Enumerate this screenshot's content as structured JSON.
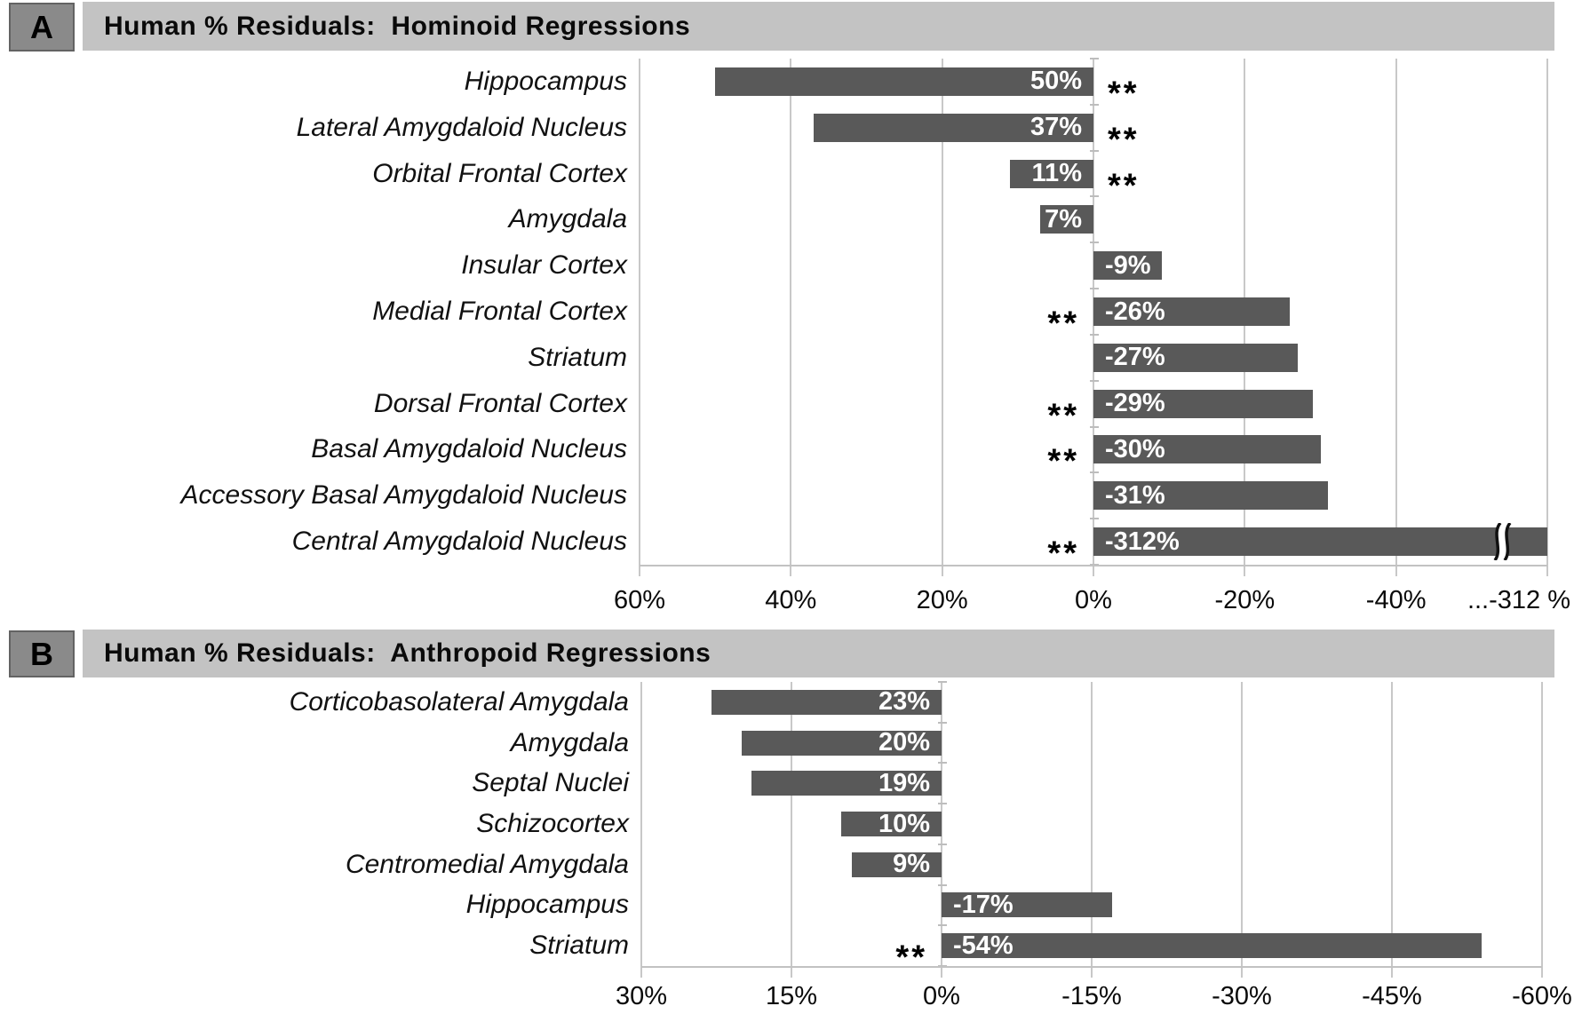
{
  "figure": {
    "description": "Two-panel horizontal bar chart of human percent residuals by brain structure"
  },
  "colors": {
    "bar": "#595959",
    "header_bg": "#c3c3c3",
    "panel_box_bg": "#8a8a8a",
    "panel_box_border": "#636363",
    "gridline": "#c8c8c8",
    "baseline": "#c2c2c2",
    "bar_value_text": "#ffffff",
    "text": "#000000"
  },
  "chart_data": [
    {
      "type": "bar",
      "orientation": "horizontal",
      "panel_label": "A",
      "title": "Human % Residuals:  Hominoid Regressions",
      "categories": [
        "Hippocampus",
        "Lateral Amygdaloid Nucleus",
        "Orbital Frontal Cortex",
        "Amygdala",
        "Insular Cortex",
        "Medial Frontal Cortex",
        "Striatum",
        "Dorsal Frontal Cortex",
        "Basal Amygdaloid Nucleus",
        "Accessory Basal Amygdaloid Nucleus",
        "Central Amygdaloid Nucleus"
      ],
      "values": [
        50,
        37,
        11,
        7,
        -9,
        -26,
        -27,
        -29,
        -30,
        -31,
        -312
      ],
      "bar_labels": [
        "50%",
        "37%",
        "11%",
        "7%",
        "-9%",
        "-26%",
        "-27%",
        "-29%",
        "-30%",
        "-31%",
        "-312%"
      ],
      "significance": [
        "**",
        "**",
        "**",
        "",
        "",
        "**",
        "",
        "**",
        "**",
        "",
        "**"
      ],
      "x_ticks": [
        {
          "v": 60,
          "t": "60%"
        },
        {
          "v": 40,
          "t": "40%"
        },
        {
          "v": 20,
          "t": "20%"
        },
        {
          "v": 0,
          "t": "0%"
        },
        {
          "v": -20,
          "t": "-20%"
        },
        {
          "v": -40,
          "t": "-40%"
        }
      ],
      "x_end_label": "...-312 %",
      "x_display_range": [
        60,
        -60
      ],
      "grid": true,
      "axis_break": {
        "present": true,
        "actual_value": -312
      }
    },
    {
      "type": "bar",
      "orientation": "horizontal",
      "panel_label": "B",
      "title": "Human % Residuals:  Anthropoid Regressions",
      "categories": [
        "Corticobasolateral Amygdala",
        "Amygdala",
        "Septal Nuclei",
        "Schizocortex",
        "Centromedial Amygdala",
        "Hippocampus",
        "Striatum"
      ],
      "values": [
        23,
        20,
        19,
        10,
        9,
        -17,
        -54
      ],
      "bar_labels": [
        "23%",
        "20%",
        "19%",
        "10%",
        "9%",
        "-17%",
        "-54%"
      ],
      "significance": [
        "",
        "",
        "",
        "",
        "",
        "",
        "**"
      ],
      "x_ticks": [
        {
          "v": 30,
          "t": "30%"
        },
        {
          "v": 15,
          "t": "15%"
        },
        {
          "v": 0,
          "t": "0%"
        },
        {
          "v": -15,
          "t": "-15%"
        },
        {
          "v": -30,
          "t": "-30%"
        },
        {
          "v": -45,
          "t": "-45%"
        },
        {
          "v": -60,
          "t": "-60%"
        }
      ],
      "x_end_label": "",
      "x_display_range": [
        30,
        -60
      ],
      "grid": true,
      "axis_break": {
        "present": false
      }
    }
  ]
}
